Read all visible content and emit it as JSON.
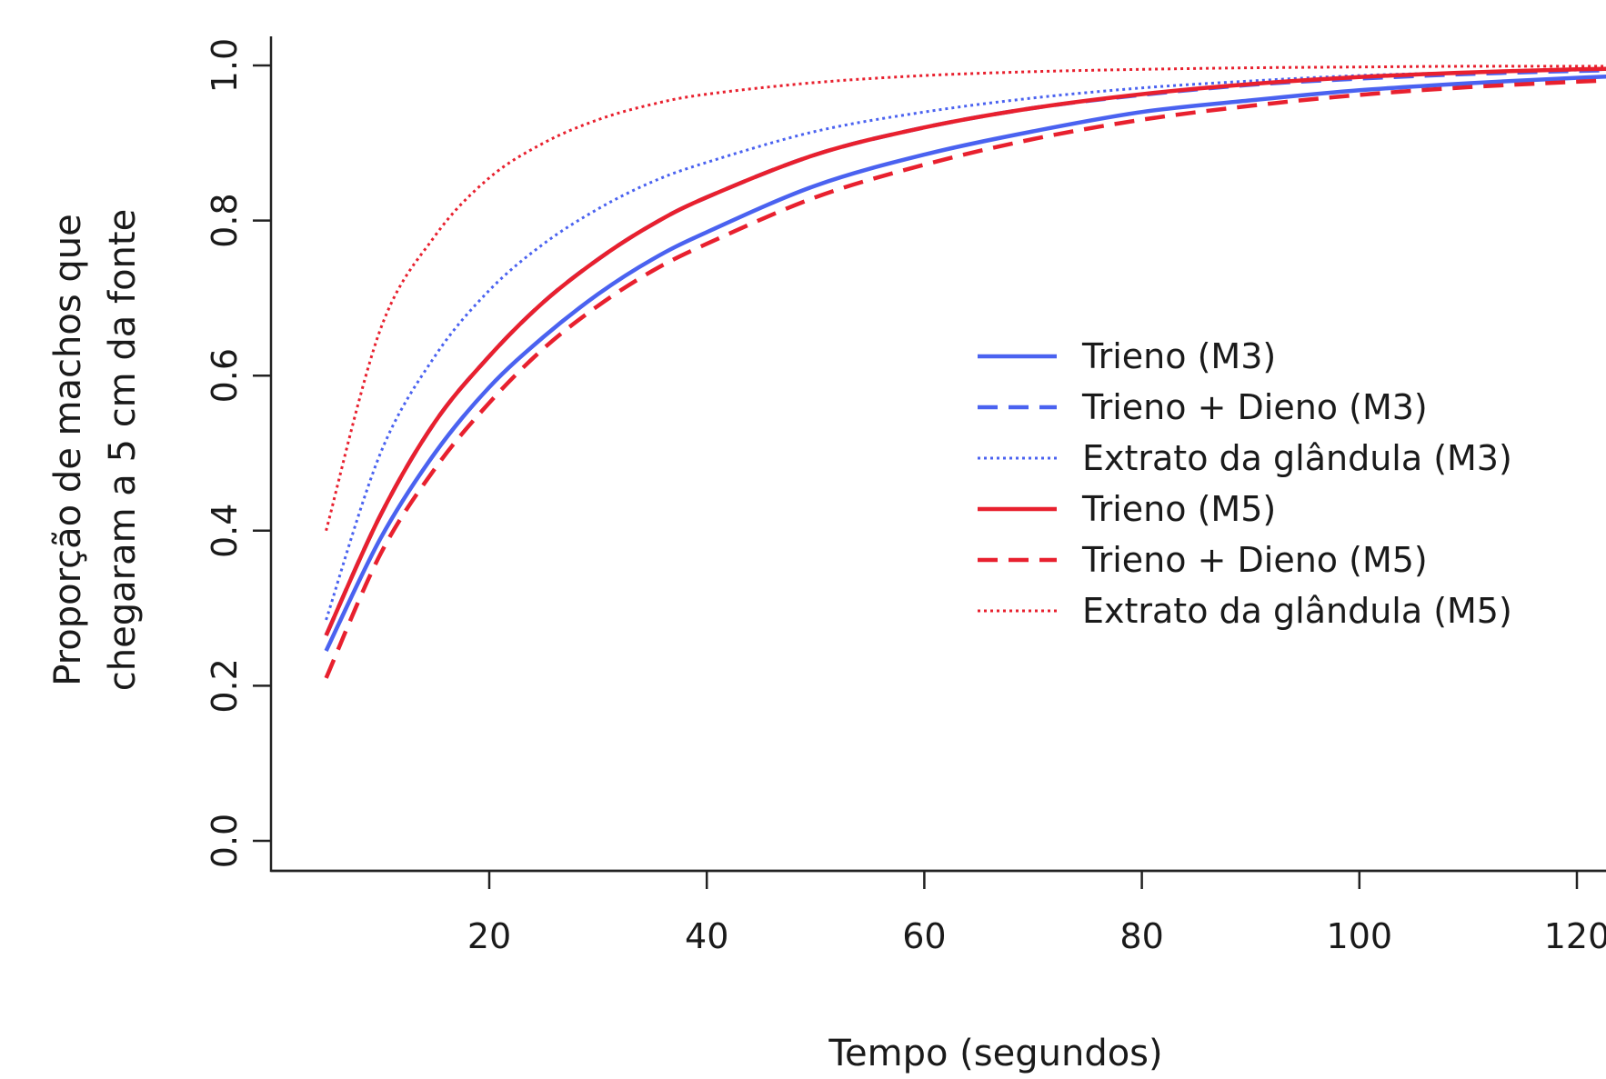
{
  "chart_data": {
    "type": "line",
    "xlabel": "Tempo (segundos)",
    "ylabel_lines": [
      "Proporção de machos que",
      "chegaram a 5 cm da fonte"
    ],
    "xlim": [
      0,
      125
    ],
    "ylim": [
      0,
      1
    ],
    "x_ticks": [
      20,
      40,
      60,
      80,
      100,
      120
    ],
    "y_ticks": [
      0.0,
      0.2,
      0.4,
      0.6,
      0.8,
      1.0
    ],
    "x_tick_labels": [
      "20",
      "40",
      "60",
      "80",
      "100",
      "120"
    ],
    "y_tick_labels": [
      "0.0",
      "0.2",
      "0.4",
      "0.6",
      "0.8",
      "1.0"
    ],
    "grid": false,
    "legend_position": "center-right",
    "x": [
      5,
      10,
      15,
      20,
      25,
      30,
      35,
      40,
      50,
      60,
      70,
      80,
      90,
      100,
      110,
      120,
      125
    ],
    "series": [
      {
        "name": "Trieno (M3)",
        "color": "#4a62f0",
        "dash": "solid",
        "values": [
          0.245,
          0.39,
          0.5,
          0.585,
          0.65,
          0.705,
          0.75,
          0.785,
          0.845,
          0.885,
          0.915,
          0.94,
          0.955,
          0.968,
          0.977,
          0.984,
          0.987
        ]
      },
      {
        "name": "Trieno + Dieno (M3)",
        "color": "#4a62f0",
        "dash": "dashed",
        "values": [
          0.265,
          0.42,
          0.54,
          0.625,
          0.695,
          0.75,
          0.795,
          0.83,
          0.885,
          0.92,
          0.945,
          0.962,
          0.975,
          0.983,
          0.989,
          0.993,
          0.994
        ]
      },
      {
        "name": "Extrato da glândula (M3)",
        "color": "#4a62f0",
        "dash": "dotted",
        "values": [
          0.285,
          0.5,
          0.625,
          0.71,
          0.77,
          0.815,
          0.85,
          0.875,
          0.915,
          0.94,
          0.958,
          0.971,
          0.98,
          0.987,
          0.991,
          0.994,
          0.995
        ]
      },
      {
        "name": "Trieno (M5)",
        "color": "#e8202e",
        "dash": "solid",
        "values": [
          0.265,
          0.42,
          0.54,
          0.625,
          0.695,
          0.75,
          0.795,
          0.83,
          0.885,
          0.92,
          0.945,
          0.963,
          0.976,
          0.985,
          0.991,
          0.995,
          0.996
        ]
      },
      {
        "name": "Trieno + Dieno (M5)",
        "color": "#e8202e",
        "dash": "dashed",
        "values": [
          0.21,
          0.37,
          0.48,
          0.565,
          0.635,
          0.69,
          0.735,
          0.77,
          0.83,
          0.872,
          0.905,
          0.93,
          0.948,
          0.962,
          0.972,
          0.979,
          0.982
        ]
      },
      {
        "name": "Extrato da glândula (M5)",
        "color": "#e8202e",
        "dash": "dotted",
        "values": [
          0.4,
          0.66,
          0.78,
          0.855,
          0.9,
          0.93,
          0.95,
          0.963,
          0.978,
          0.987,
          0.992,
          0.995,
          0.997,
          0.998,
          0.999,
          0.999,
          0.999
        ]
      }
    ]
  }
}
